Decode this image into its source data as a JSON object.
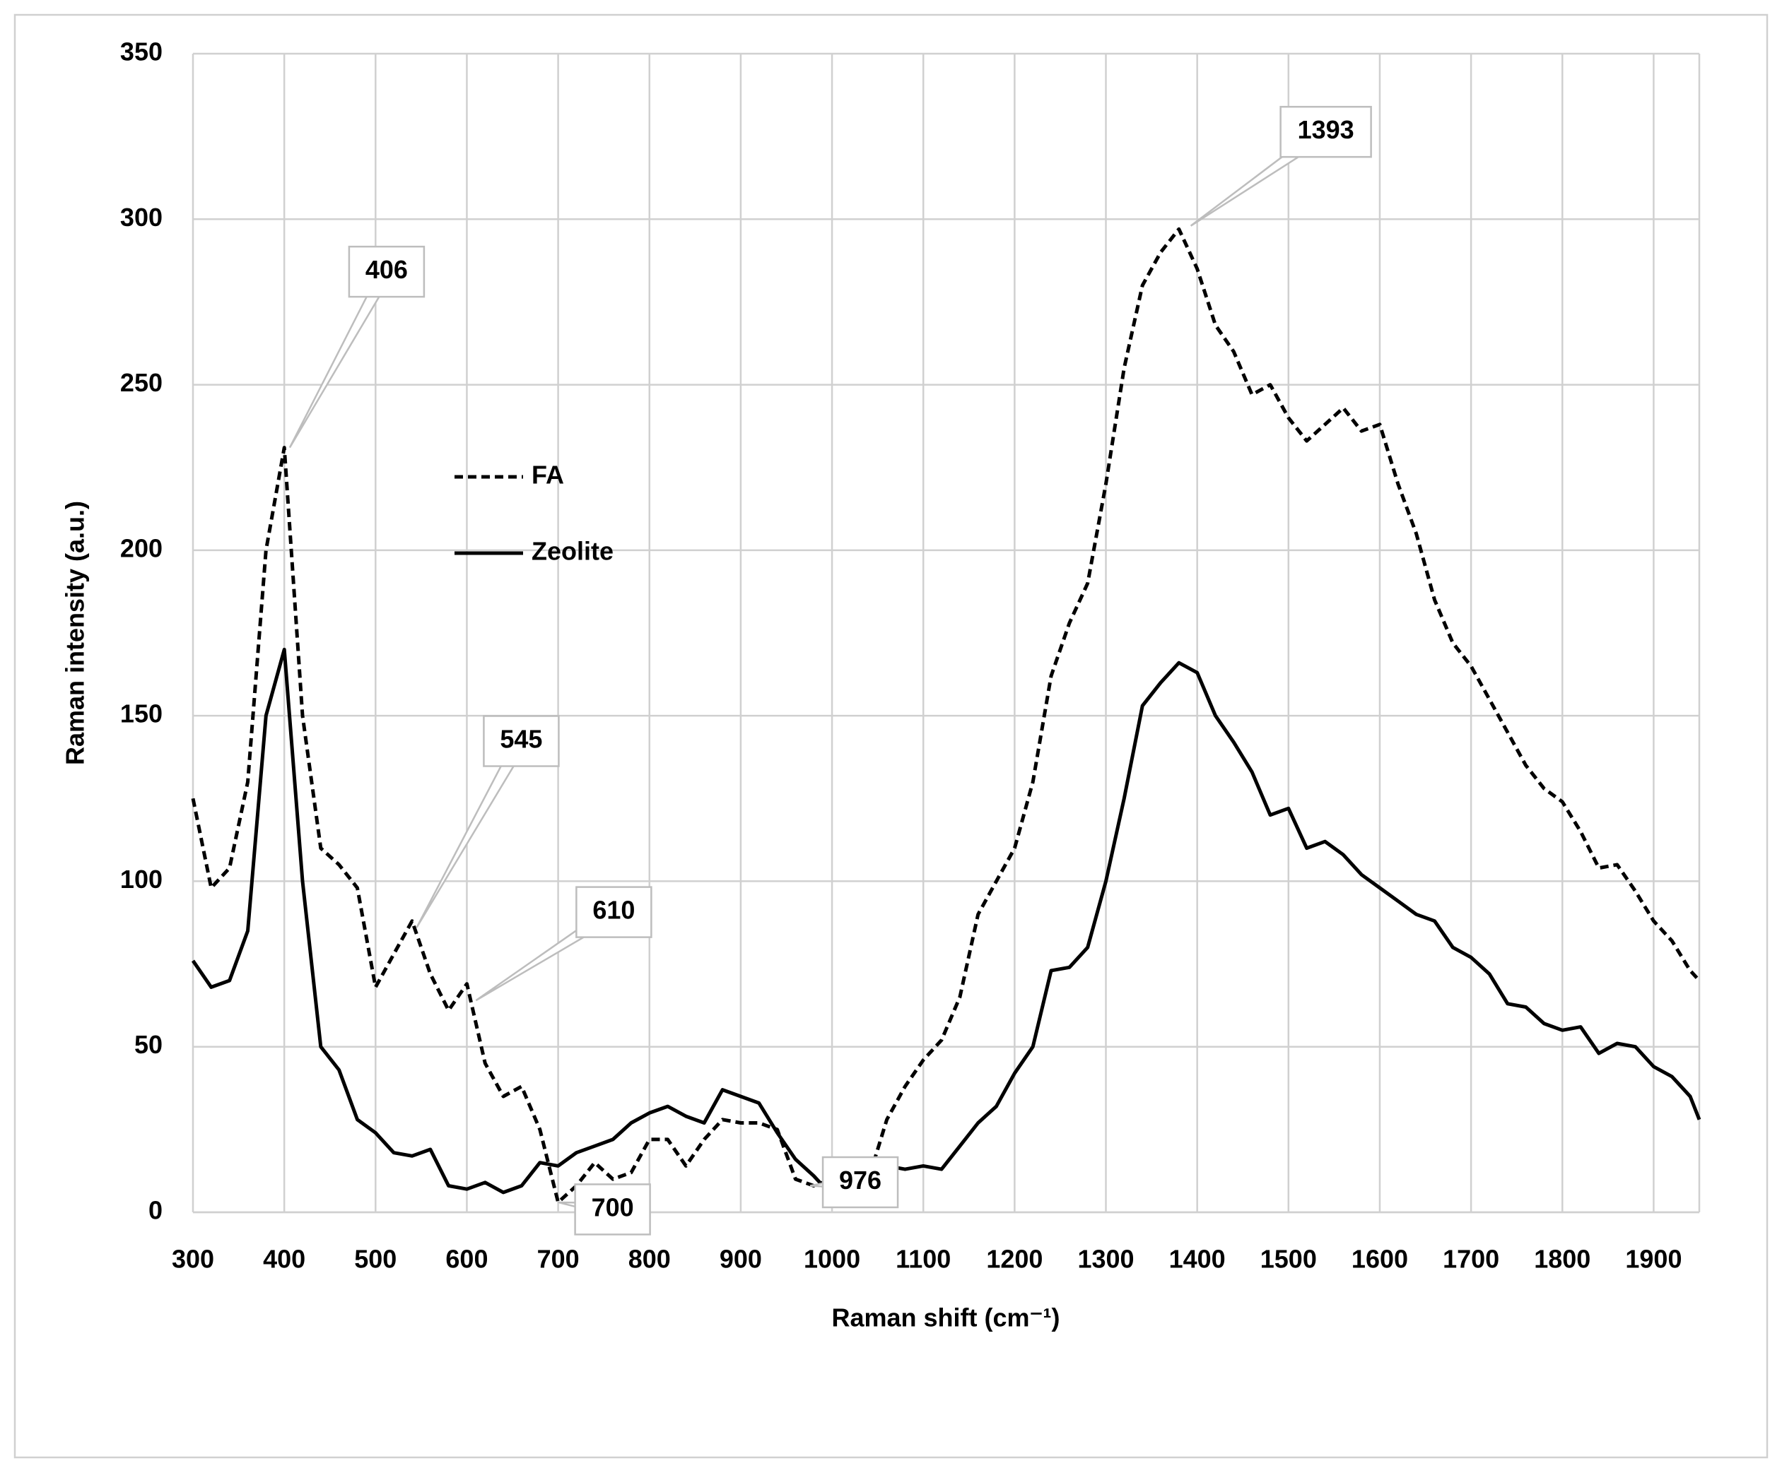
{
  "chart_data": {
    "type": "line",
    "x_label": "Raman shift (cm⁻¹)",
    "y_label": "Raman intensity (a.u.)",
    "xlim": [
      300,
      1950
    ],
    "ylim": [
      0,
      350
    ],
    "xticks": [
      300,
      400,
      500,
      600,
      700,
      800,
      900,
      1000,
      1100,
      1200,
      1300,
      1400,
      1500,
      1600,
      1700,
      1800,
      1900
    ],
    "yticks": [
      0,
      50,
      100,
      150,
      200,
      250,
      300,
      350
    ],
    "grid": true,
    "x": [
      300,
      320,
      340,
      360,
      380,
      400,
      420,
      440,
      460,
      480,
      500,
      520,
      540,
      560,
      580,
      600,
      620,
      640,
      660,
      680,
      700,
      720,
      740,
      760,
      780,
      800,
      820,
      840,
      860,
      880,
      900,
      920,
      940,
      960,
      980,
      1000,
      1020,
      1040,
      1060,
      1080,
      1100,
      1120,
      1140,
      1160,
      1180,
      1200,
      1220,
      1240,
      1260,
      1280,
      1300,
      1320,
      1340,
      1360,
      1380,
      1400,
      1420,
      1440,
      1460,
      1480,
      1500,
      1520,
      1540,
      1560,
      1580,
      1600,
      1620,
      1640,
      1660,
      1680,
      1700,
      1720,
      1740,
      1760,
      1780,
      1800,
      1820,
      1840,
      1860,
      1880,
      1900,
      1920,
      1940,
      1950
    ],
    "series": [
      {
        "name": "FA",
        "color": "#000000",
        "style": "dashed",
        "values": [
          125,
          98,
          104,
          130,
          200,
          231,
          150,
          110,
          105,
          98,
          68,
          78,
          88,
          72,
          61,
          69,
          45,
          35,
          38,
          25,
          3,
          8,
          15,
          10,
          12,
          22,
          22,
          14,
          22,
          28,
          27,
          27,
          25,
          10,
          8,
          10,
          5,
          10,
          28,
          38,
          46,
          52,
          65,
          90,
          100,
          110,
          130,
          162,
          178,
          190,
          220,
          255,
          280,
          290,
          297,
          285,
          268,
          260,
          247,
          250,
          240,
          233,
          238,
          243,
          236,
          238,
          220,
          205,
          185,
          172,
          165,
          155,
          145,
          135,
          128,
          124,
          115,
          104,
          105,
          97,
          88,
          82,
          73,
          70
        ]
      },
      {
        "name": "Zeolite",
        "color": "#000000",
        "style": "solid",
        "values": [
          76,
          68,
          70,
          85,
          150,
          170,
          100,
          50,
          43,
          28,
          24,
          18,
          17,
          19,
          8,
          7,
          9,
          6,
          8,
          15,
          14,
          18,
          20,
          22,
          27,
          30,
          32,
          29,
          27,
          37,
          35,
          33,
          24,
          16,
          11,
          5,
          2,
          14,
          14,
          13,
          14,
          13,
          20,
          27,
          32,
          42,
          50,
          73,
          74,
          80,
          100,
          125,
          153,
          160,
          166,
          163,
          150,
          142,
          133,
          120,
          122,
          110,
          112,
          108,
          102,
          98,
          94,
          90,
          88,
          80,
          77,
          72,
          63,
          62,
          57,
          55,
          56,
          48,
          51,
          50,
          44,
          41,
          35,
          28
        ]
      }
    ],
    "annotations": [
      {
        "text": "406",
        "x": 406,
        "y": 231
      },
      {
        "text": "545",
        "x": 545,
        "y": 86
      },
      {
        "text": "610",
        "x": 610,
        "y": 64
      },
      {
        "text": "700",
        "x": 700,
        "y": 3
      },
      {
        "text": "976",
        "x": 976,
        "y": 8
      },
      {
        "text": "1393",
        "x": 1393,
        "y": 298
      }
    ]
  }
}
